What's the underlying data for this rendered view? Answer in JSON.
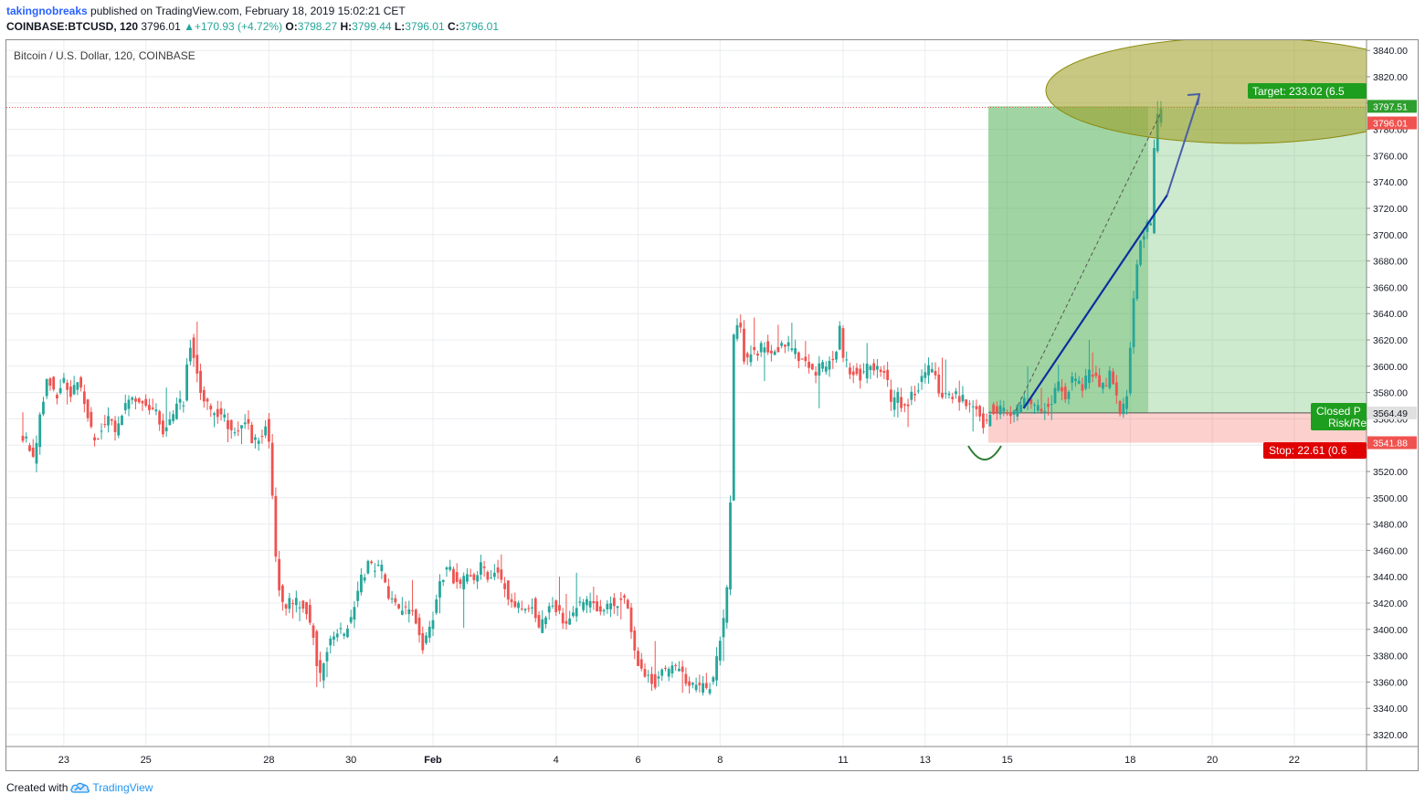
{
  "header": {
    "author": "takingnobreaks",
    "published_text": " published on TradingView.com, February 18, 2019 15:02:21 CET",
    "symbol": "COINBASE:BTCUSD, 120",
    "last": "3796.01",
    "change": "+170.93 (+4.72%)",
    "o_label": "O:",
    "o_value": "3798.27",
    "h_label": "H:",
    "h_value": "3799.44",
    "l_label": "L:",
    "l_value": "3796.01",
    "c_label": "C:",
    "c_value": "3796.01"
  },
  "footer": {
    "created_with": "Created with",
    "brand": "TradingView"
  },
  "colors": {
    "up": "#26a69a",
    "down": "#ef5350",
    "grid": "#e9ecef",
    "target_zone": "#4caf50",
    "stop_zone": "#f44336",
    "trend_line": "#0d2ea0",
    "ellipse_fill": "#9b9b1c",
    "ellipse_stroke": "#8c8c10"
  },
  "chart_data": {
    "type": "candlestick",
    "title": "Bitcoin / U.S. Dollar, 120, COINBASE",
    "ylim": [
      3308,
      3845
    ],
    "y_ticks": [
      3320,
      3340,
      3360,
      3380,
      3400,
      3420,
      3440,
      3460,
      3480,
      3500,
      3520,
      3540,
      3560,
      3580,
      3600,
      3620,
      3640,
      3660,
      3680,
      3700,
      3720,
      3740,
      3760,
      3780,
      3800,
      3820,
      3840
    ],
    "x_labels": [
      {
        "label": "23",
        "day": 1
      },
      {
        "label": "25",
        "day": 3
      },
      {
        "label": "28",
        "day": 6
      },
      {
        "label": "30",
        "day": 8
      },
      {
        "label": "Feb",
        "day": 10,
        "bold": true
      },
      {
        "label": "4",
        "day": 13
      },
      {
        "label": "6",
        "day": 15
      },
      {
        "label": "8",
        "day": 17
      },
      {
        "label": "11",
        "day": 20
      },
      {
        "label": "13",
        "day": 22
      },
      {
        "label": "15",
        "day": 24
      },
      {
        "label": "18",
        "day": 27
      },
      {
        "label": "20",
        "day": 29
      },
      {
        "label": "22",
        "day": 31
      }
    ],
    "price_path": [
      [
        0.0,
        3547
      ],
      [
        0.2,
        3542
      ],
      [
        0.35,
        3528
      ],
      [
        0.55,
        3572
      ],
      [
        0.7,
        3592
      ],
      [
        0.9,
        3578
      ],
      [
        1.1,
        3590
      ],
      [
        1.25,
        3575
      ],
      [
        1.45,
        3592
      ],
      [
        1.65,
        3565
      ],
      [
        1.8,
        3543
      ],
      [
        2.0,
        3552
      ],
      [
        2.2,
        3560
      ],
      [
        2.35,
        3548
      ],
      [
        2.5,
        3566
      ],
      [
        2.7,
        3580
      ],
      [
        2.9,
        3571
      ],
      [
        3.1,
        3573
      ],
      [
        3.35,
        3563
      ],
      [
        3.5,
        3548
      ],
      [
        3.65,
        3558
      ],
      [
        3.85,
        3570
      ],
      [
        4.0,
        3574
      ],
      [
        4.15,
        3620
      ],
      [
        4.3,
        3598
      ],
      [
        4.45,
        3580
      ],
      [
        4.6,
        3568
      ],
      [
        4.8,
        3565
      ],
      [
        5.0,
        3560
      ],
      [
        5.2,
        3548
      ],
      [
        5.4,
        3556
      ],
      [
        5.55,
        3558
      ],
      [
        5.7,
        3542
      ],
      [
        5.85,
        3545
      ],
      [
        6.0,
        3558
      ],
      [
        6.1,
        3535
      ],
      [
        6.2,
        3480
      ],
      [
        6.3,
        3435
      ],
      [
        6.45,
        3415
      ],
      [
        6.6,
        3422
      ],
      [
        6.8,
        3420
      ],
      [
        7.0,
        3415
      ],
      [
        7.15,
        3400
      ],
      [
        7.3,
        3360
      ],
      [
        7.45,
        3380
      ],
      [
        7.6,
        3395
      ],
      [
        7.75,
        3398
      ],
      [
        7.9,
        3396
      ],
      [
        8.05,
        3408
      ],
      [
        8.2,
        3420
      ],
      [
        8.35,
        3440
      ],
      [
        8.5,
        3448
      ],
      [
        8.65,
        3445
      ],
      [
        8.8,
        3450
      ],
      [
        8.95,
        3430
      ],
      [
        9.1,
        3420
      ],
      [
        9.3,
        3413
      ],
      [
        9.5,
        3418
      ],
      [
        9.65,
        3410
      ],
      [
        9.8,
        3385
      ],
      [
        9.95,
        3398
      ],
      [
        10.15,
        3418
      ],
      [
        10.3,
        3440
      ],
      [
        10.45,
        3448
      ],
      [
        10.6,
        3438
      ],
      [
        10.75,
        3432
      ],
      [
        10.9,
        3440
      ],
      [
        11.1,
        3438
      ],
      [
        11.3,
        3450
      ],
      [
        11.45,
        3440
      ],
      [
        11.6,
        3446
      ],
      [
        11.8,
        3437
      ],
      [
        11.95,
        3420
      ],
      [
        12.1,
        3418
      ],
      [
        12.3,
        3415
      ],
      [
        12.5,
        3420
      ],
      [
        12.65,
        3400
      ],
      [
        12.8,
        3408
      ],
      [
        13.0,
        3420
      ],
      [
        13.15,
        3412
      ],
      [
        13.3,
        3397
      ],
      [
        13.45,
        3412
      ],
      [
        13.6,
        3418
      ],
      [
        13.8,
        3420
      ],
      [
        14.0,
        3420
      ],
      [
        14.2,
        3415
      ],
      [
        14.4,
        3420
      ],
      [
        14.6,
        3421
      ],
      [
        14.8,
        3422
      ],
      [
        15.0,
        3380
      ],
      [
        15.2,
        3370
      ],
      [
        15.35,
        3365
      ],
      [
        15.5,
        3360
      ],
      [
        15.7,
        3368
      ],
      [
        15.9,
        3370
      ],
      [
        16.05,
        3372
      ],
      [
        16.2,
        3365
      ],
      [
        16.35,
        3358
      ],
      [
        16.5,
        3355
      ],
      [
        16.65,
        3356
      ],
      [
        16.8,
        3355
      ],
      [
        16.9,
        3362
      ],
      [
        17.0,
        3378
      ],
      [
        17.1,
        3395
      ],
      [
        17.2,
        3410
      ],
      [
        17.3,
        3450
      ],
      [
        17.42,
        3628
      ],
      [
        17.55,
        3635
      ],
      [
        17.7,
        3598
      ],
      [
        17.85,
        3612
      ],
      [
        18.0,
        3608
      ],
      [
        18.15,
        3618
      ],
      [
        18.3,
        3604
      ],
      [
        18.5,
        3615
      ],
      [
        18.7,
        3618
      ],
      [
        18.9,
        3610
      ],
      [
        19.05,
        3604
      ],
      [
        19.2,
        3600
      ],
      [
        19.35,
        3594
      ],
      [
        19.5,
        3598
      ],
      [
        19.7,
        3600
      ],
      [
        19.9,
        3610
      ],
      [
        20.0,
        3628
      ],
      [
        20.1,
        3605
      ],
      [
        20.25,
        3598
      ],
      [
        20.4,
        3596
      ],
      [
        20.55,
        3590
      ],
      [
        20.7,
        3602
      ],
      [
        20.9,
        3600
      ],
      [
        21.1,
        3598
      ],
      [
        21.25,
        3570
      ],
      [
        21.4,
        3578
      ],
      [
        21.55,
        3565
      ],
      [
        21.7,
        3575
      ],
      [
        21.85,
        3580
      ],
      [
        22.0,
        3590
      ],
      [
        22.15,
        3600
      ],
      [
        22.3,
        3596
      ],
      [
        22.45,
        3580
      ],
      [
        22.6,
        3576
      ],
      [
        22.8,
        3578
      ],
      [
        23.0,
        3575
      ],
      [
        23.15,
        3572
      ],
      [
        23.3,
        3570
      ],
      [
        23.45,
        3560
      ],
      [
        23.55,
        3555
      ],
      [
        23.65,
        3567
      ],
      [
        23.8,
        3565
      ],
      [
        23.95,
        3570
      ],
      [
        24.1,
        3566
      ],
      [
        24.3,
        3565
      ],
      [
        24.5,
        3575
      ],
      [
        24.65,
        3570
      ],
      [
        24.8,
        3568
      ],
      [
        24.95,
        3566
      ],
      [
        25.15,
        3575
      ],
      [
        25.35,
        3585
      ],
      [
        25.5,
        3578
      ],
      [
        25.7,
        3590
      ],
      [
        25.9,
        3585
      ],
      [
        26.1,
        3595
      ],
      [
        26.3,
        3588
      ],
      [
        26.45,
        3582
      ],
      [
        26.6,
        3596
      ],
      [
        26.75,
        3575
      ],
      [
        26.85,
        3565
      ],
      [
        26.95,
        3570
      ],
      [
        27.05,
        3590
      ],
      [
        27.12,
        3640
      ],
      [
        27.2,
        3665
      ],
      [
        27.3,
        3690
      ],
      [
        27.42,
        3700
      ],
      [
        27.52,
        3710
      ],
      [
        27.6,
        3703
      ],
      [
        27.65,
        3760
      ],
      [
        27.72,
        3782
      ],
      [
        27.78,
        3796
      ]
    ],
    "annotations": {
      "entry_price": 3564.49,
      "stop_price": 3541.88,
      "target_price": 3797.51,
      "last_price": 3796.01,
      "target_label": "Target: 233.02 (6.5",
      "stop_label": "Stop: 22.61 (0.6",
      "closed_label_line1": "Closed P",
      "closed_label_line2": "Risk/Re",
      "target_price_tag": "3797.51",
      "last_price_tag": "3796.01",
      "entry_price_tag": "3564.49",
      "stop_price_tag": "3541.88"
    }
  }
}
